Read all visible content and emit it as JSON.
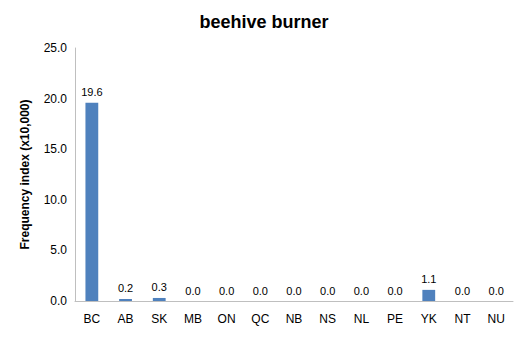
{
  "chart_data": {
    "type": "bar",
    "title": "beehive burner",
    "y_label": "Frequency index (x10,000)",
    "categories": [
      "BC",
      "AB",
      "SK",
      "MB",
      "ON",
      "QC",
      "NB",
      "NS",
      "NL",
      "PE",
      "YK",
      "NT",
      "NU"
    ],
    "values": [
      19.6,
      0.2,
      0.3,
      0,
      0,
      0,
      0,
      0,
      0,
      0,
      1.1,
      0,
      0
    ],
    "value_labels": [
      "19.6",
      "0.2",
      "0.3",
      "0.0",
      "0.0",
      "0.0",
      "0.0",
      "0.0",
      "0.0",
      "0.0",
      "1.1",
      "0.0",
      "0.0"
    ],
    "color": "#4f81bd",
    "ylim": [
      0,
      25
    ],
    "yticks": [
      {
        "value": 0,
        "label": "0.0"
      },
      {
        "value": 5,
        "label": "5.0"
      },
      {
        "value": 10,
        "label": "10.0"
      },
      {
        "value": 15,
        "label": "15.0"
      },
      {
        "value": 20,
        "label": "20.0"
      },
      {
        "value": 25,
        "label": "25.0"
      }
    ],
    "grid": false,
    "data_labels": true
  }
}
